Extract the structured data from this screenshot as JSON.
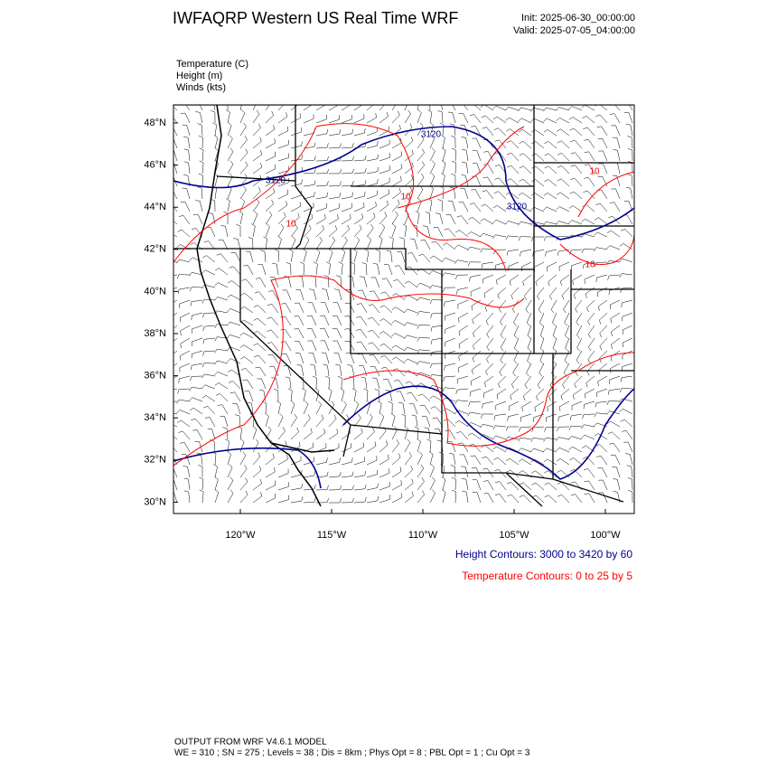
{
  "header": {
    "title": "IWFAQRP Western US Real Time WRF",
    "init": "Init: 2025-06-30_00:00:00",
    "valid": "Valid: 2025-07-05_04:00:00"
  },
  "fields": [
    "Temperature   (C)",
    "Height   (m)",
    "Winds   (kts)"
  ],
  "lat_labels": [
    "48°N",
    "46°N",
    "44°N",
    "42°N",
    "40°N",
    "38°N",
    "36°N",
    "34°N",
    "32°N",
    "30°N"
  ],
  "lon_labels": [
    "120°W",
    "115°W",
    "110°W",
    "105°W",
    "100°W"
  ],
  "height_contour_labels": [
    "3120",
    "3120",
    "3120"
  ],
  "temperature_contour_labels": [
    "10",
    "10",
    "10",
    "10"
  ],
  "legend": {
    "height": "Height Contours: 3000 to 3420 by 60",
    "temperature": "Temperature Contours: 0 to 25 by 5"
  },
  "footer": {
    "line1": "OUTPUT FROM WRF V4.6.1 MODEL",
    "line2": "WE = 310 ; SN = 275 ; Levels = 38 ; Dis = 8km ; Phys Opt = 8 ; PBL Opt = 1 ; Cu Opt = 3"
  }
}
